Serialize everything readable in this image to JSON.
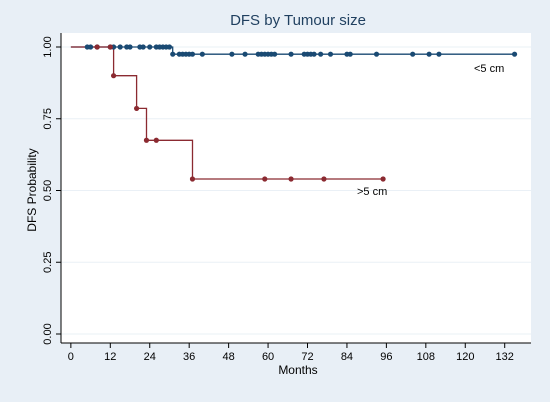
{
  "chart_data": {
    "type": "line",
    "title": "DFS by Tumour size",
    "xlabel": "Months",
    "ylabel": "DFS Probability",
    "xlim": [
      -3,
      140
    ],
    "ylim": [
      0,
      1
    ],
    "xticks": [
      "0",
      "12",
      "24",
      "36",
      "48",
      "60",
      "72",
      "84",
      "96",
      "108",
      "120",
      "132"
    ],
    "yticks": [
      "0.00",
      "0.25",
      "0.50",
      "0.75",
      "1.00"
    ],
    "grid": true,
    "colors": {
      "outer_background": "#e8eff6",
      "plot_background": "#ffffff",
      "gridline": "#eaf0f6",
      "axis": "#000000"
    },
    "series": [
      {
        "name": "<5 cm",
        "label_text": "<5 cm",
        "color": "#1a4a73",
        "steps": [
          [
            0,
            1.0
          ],
          [
            31,
            1.0
          ],
          [
            31,
            0.975
          ],
          [
            135,
            0.975
          ]
        ],
        "censored_x": [
          5,
          6,
          8,
          12,
          13,
          15,
          17,
          18,
          21,
          22,
          24,
          26,
          27,
          28,
          29,
          30,
          31,
          33,
          34,
          35,
          36,
          37,
          40,
          49,
          53,
          57,
          58,
          59,
          60,
          61,
          62,
          67,
          71,
          72,
          73,
          74,
          76,
          79,
          84,
          85,
          93,
          104,
          109,
          112,
          135
        ]
      },
      {
        "name": ">5 cm",
        "label_text": ">5 cm",
        "color": "#8b2a31",
        "steps": [
          [
            0,
            1.0
          ],
          [
            13,
            1.0
          ],
          [
            13,
            0.9
          ],
          [
            20,
            0.9
          ],
          [
            20,
            0.786
          ],
          [
            23,
            0.786
          ],
          [
            23,
            0.675
          ],
          [
            37,
            0.675
          ],
          [
            37,
            0.54
          ],
          [
            95,
            0.54
          ]
        ],
        "censored_x": [
          8,
          12,
          13,
          20,
          23,
          26,
          37,
          59,
          67,
          77,
          95
        ]
      }
    ]
  }
}
